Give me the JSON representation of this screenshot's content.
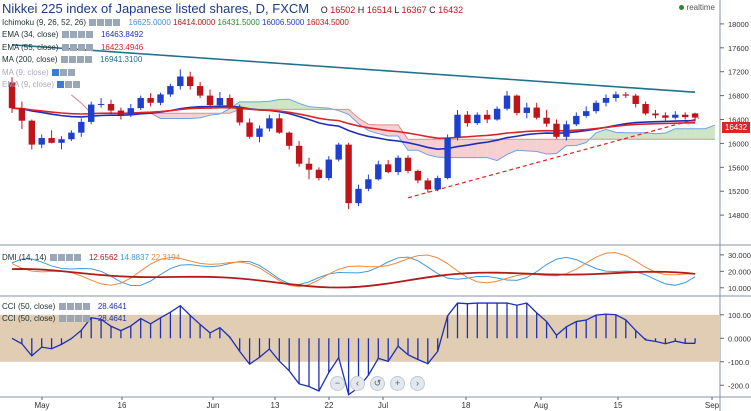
{
  "header": {
    "title": "Nikkei 225 index of Japanese listed shares, D, FXCM",
    "o_label": "O",
    "o": "16502",
    "h_label": "H",
    "h": "16514",
    "l_label": "L",
    "l": "16367",
    "c_label": "C",
    "c": "16432",
    "realtime": "realtime"
  },
  "indicators": {
    "ichimoku": {
      "label": "Ichimoku (9, 26, 52, 26)",
      "values": [
        "16625.0000",
        "16414.0000",
        "16431.5000",
        "16006.5000",
        "16034.5000"
      ]
    },
    "ema34": {
      "label": "EMA (34, close)",
      "value": "16463.8492"
    },
    "ema55": {
      "label": "EMA (55, close)",
      "value": "16423.4946"
    },
    "ema200": {
      "label": "MA (200, close)",
      "value": "16941.3100"
    },
    "ma9": {
      "label": "MA (9, close)"
    },
    "ema9": {
      "label": "EMA (9, close)"
    },
    "dmi": {
      "label": "DMI (14, 14)",
      "values": [
        "12.6562",
        "14.8837",
        "22.3194"
      ]
    },
    "cci50": {
      "label": "CCI (50, close)",
      "value": "28.4641"
    },
    "cci50b": {
      "label": "CCI (50, close)",
      "value": "28.4641"
    }
  },
  "price_tag": "16432",
  "colors": {
    "up": "#1f3fcf",
    "down": "#c0141b",
    "ema34": "#1f2fb5",
    "ema55": "#d9252a",
    "ma200": "#22708e",
    "cloud_bull": "#cfe5c8",
    "cloud_bear": "#f6cfd1",
    "dmi_plus": "#3f9be3",
    "dmi_minus": "#f08a3c",
    "adx": "#b31b1b",
    "cci": "#1f2fb5",
    "cci_band": "#e0cdb3"
  },
  "chart_data": {
    "type": "candlestick",
    "ylim": [
      14300,
      18400
    ],
    "y_ticks": [
      "18000",
      "17600",
      "17200",
      "16800",
      "16400",
      "16000",
      "15600",
      "15200",
      "14800"
    ],
    "x_ticks": [
      "May",
      "16",
      "Jun",
      "13",
      "22",
      "Jul",
      "18",
      "Aug",
      "15",
      "Sep"
    ],
    "candles": [
      [
        17020,
        17110,
        16510,
        16590
      ],
      [
        16590,
        16700,
        16240,
        16380
      ],
      [
        16380,
        16400,
        15900,
        15980
      ],
      [
        15980,
        16150,
        15920,
        16090
      ],
      [
        16090,
        16220,
        16000,
        16010
      ],
      [
        16010,
        16120,
        15900,
        16070
      ],
      [
        16070,
        16220,
        16040,
        16180
      ],
      [
        16180,
        16420,
        16110,
        16360
      ],
      [
        16360,
        16700,
        16320,
        16650
      ],
      [
        16650,
        16760,
        16600,
        16660
      ],
      [
        16660,
        16730,
        16490,
        16550
      ],
      [
        16550,
        16600,
        16400,
        16480
      ],
      [
        16480,
        16660,
        16440,
        16590
      ],
      [
        16590,
        16800,
        16560,
        16760
      ],
      [
        16760,
        16840,
        16620,
        16680
      ],
      [
        16680,
        16850,
        16640,
        16820
      ],
      [
        16820,
        17000,
        16780,
        16960
      ],
      [
        16960,
        17240,
        16900,
        17120
      ],
      [
        17120,
        17200,
        16900,
        16960
      ],
      [
        16960,
        17030,
        16760,
        16800
      ],
      [
        16800,
        16900,
        16600,
        16640
      ],
      [
        16640,
        16860,
        16600,
        16760
      ],
      [
        16760,
        16820,
        16580,
        16610
      ],
      [
        16610,
        16650,
        16300,
        16350
      ],
      [
        16350,
        16420,
        16080,
        16110
      ],
      [
        16110,
        16300,
        16020,
        16250
      ],
      [
        16250,
        16480,
        16200,
        16420
      ],
      [
        16420,
        16500,
        16160,
        16180
      ],
      [
        16180,
        16200,
        15900,
        15960
      ],
      [
        15960,
        16040,
        15610,
        15660
      ],
      [
        15660,
        15760,
        15400,
        15560
      ],
      [
        15560,
        15600,
        15380,
        15420
      ],
      [
        15420,
        15790,
        15380,
        15730
      ],
      [
        15730,
        16010,
        15700,
        15980
      ],
      [
        15980,
        16010,
        14900,
        15000
      ],
      [
        15000,
        15310,
        14950,
        15240
      ],
      [
        15240,
        15480,
        15200,
        15400
      ],
      [
        15400,
        15710,
        15380,
        15650
      ],
      [
        15650,
        15720,
        15500,
        15520
      ],
      [
        15520,
        15800,
        15470,
        15760
      ],
      [
        15760,
        15800,
        15500,
        15540
      ],
      [
        15540,
        15560,
        15330,
        15380
      ],
      [
        15380,
        15420,
        15180,
        15230
      ],
      [
        15230,
        15460,
        15200,
        15420
      ],
      [
        15420,
        16150,
        15400,
        16100
      ],
      [
        16100,
        16560,
        16050,
        16480
      ],
      [
        16480,
        16540,
        16280,
        16340
      ],
      [
        16340,
        16520,
        16310,
        16480
      ],
      [
        16480,
        16560,
        16340,
        16400
      ],
      [
        16400,
        16620,
        16380,
        16580
      ],
      [
        16580,
        16880,
        16550,
        16800
      ],
      [
        16800,
        16820,
        16470,
        16510
      ],
      [
        16510,
        16680,
        16420,
        16600
      ],
      [
        16600,
        16680,
        16400,
        16430
      ],
      [
        16430,
        16560,
        16280,
        16330
      ],
      [
        16330,
        16400,
        16080,
        16110
      ],
      [
        16110,
        16380,
        16050,
        16320
      ],
      [
        16320,
        16520,
        16290,
        16460
      ],
      [
        16460,
        16620,
        16430,
        16540
      ],
      [
        16540,
        16720,
        16500,
        16680
      ],
      [
        16680,
        16820,
        16620,
        16760
      ],
      [
        16760,
        16870,
        16700,
        16820
      ],
      [
        16820,
        16860,
        16760,
        16800
      ],
      [
        16800,
        16830,
        16600,
        16660
      ],
      [
        16660,
        16700,
        16470,
        16500
      ],
      [
        16500,
        16560,
        16420,
        16470
      ],
      [
        16470,
        16520,
        16380,
        16430
      ],
      [
        16430,
        16540,
        16400,
        16480
      ],
      [
        16480,
        16520,
        16400,
        16440
      ],
      [
        16502,
        16514,
        16367,
        16432
      ]
    ],
    "dmi_ylim": [
      5,
      36
    ],
    "dmi_ticks": [
      "30.000",
      "20.000",
      "10.000"
    ],
    "cci_ylim": [
      -250,
      180
    ],
    "cci_ticks": [
      "100.000",
      "0.0000",
      "-100.0",
      "-200.0"
    ]
  }
}
